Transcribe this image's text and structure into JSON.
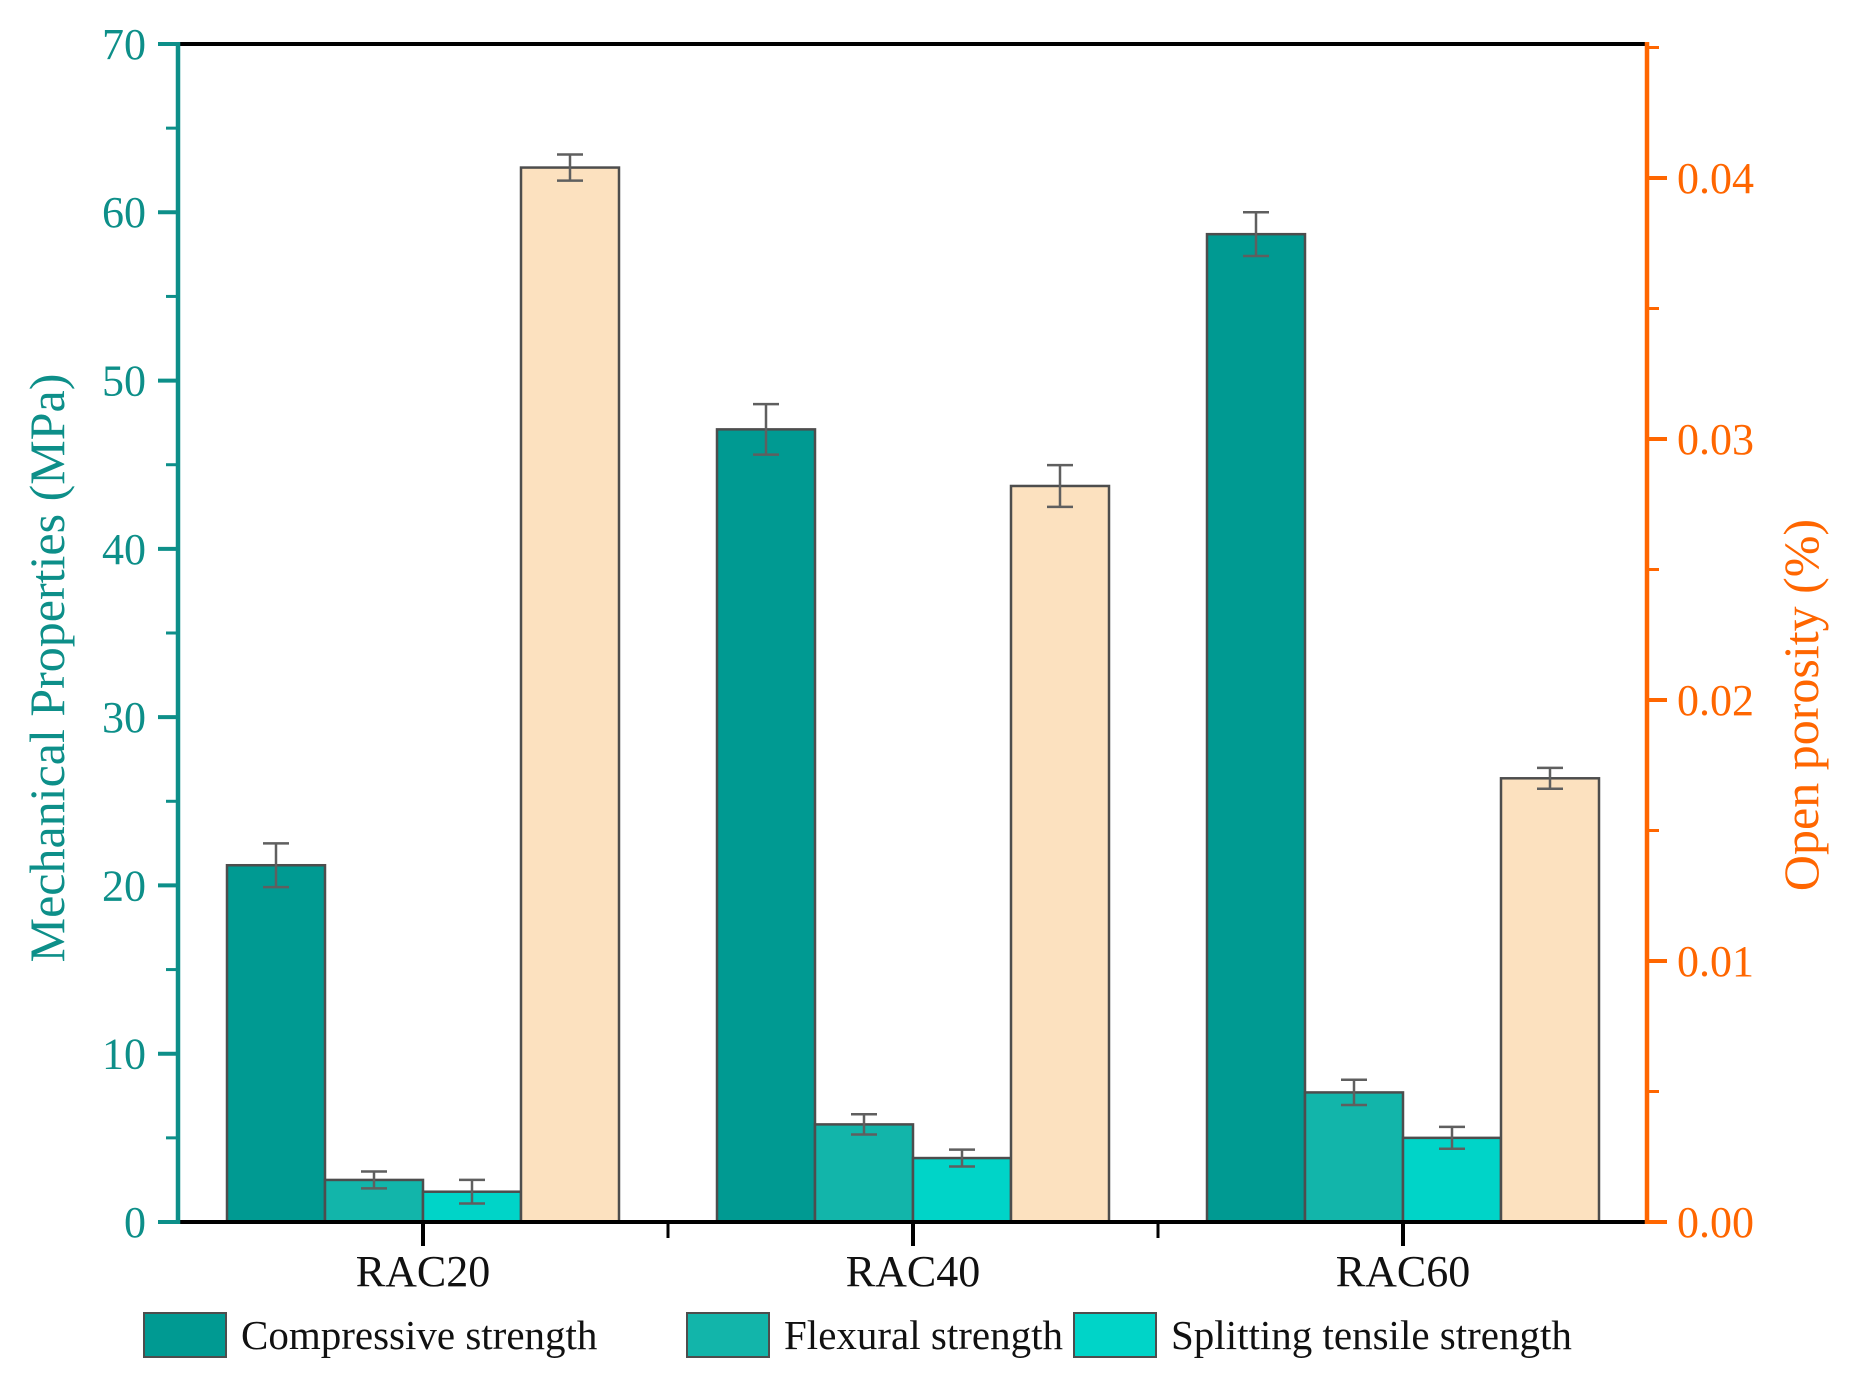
{
  "figure": {
    "background": "#ffffff"
  },
  "chart_data": {
    "type": "bar",
    "categories": [
      "RAC20",
      "RAC40",
      "RAC60"
    ],
    "series": [
      {
        "name": "Compressive strength",
        "axis": "left",
        "color": "#009a92",
        "values": [
          21.2,
          47.1,
          58.7
        ],
        "errors": [
          1.3,
          1.5,
          1.3
        ]
      },
      {
        "name": "Flexural strength",
        "axis": "left",
        "color": "#12b5aa",
        "values": [
          2.5,
          5.8,
          7.7
        ],
        "errors": [
          0.5,
          0.6,
          0.75
        ]
      },
      {
        "name": "Splitting tensile strength",
        "axis": "left",
        "color": "#00d4c8",
        "values": [
          1.8,
          3.8,
          5.0
        ],
        "errors": [
          0.7,
          0.5,
          0.65
        ]
      },
      {
        "name": "Open porosity",
        "axis": "right",
        "color": "#fce1bf",
        "values": [
          0.0404,
          0.0282,
          0.017
        ],
        "errors": [
          0.0005,
          0.0008,
          0.0004
        ]
      }
    ],
    "left_axis": {
      "label": "Mechanical Properties (MPa)",
      "min": 0,
      "max": 70,
      "major_step": 10,
      "minor_step": 5,
      "tick_labels": [
        "0",
        "10",
        "20",
        "30",
        "40",
        "50",
        "60",
        "70"
      ],
      "color": "#0d8f89"
    },
    "right_axis": {
      "label": "Open porosity (%)",
      "min": 0,
      "max": 0.04513,
      "major_step": 0.01,
      "minor_step": 0.005,
      "tick_labels": [
        "0.00",
        "0.01",
        "0.02",
        "0.03",
        "0.04"
      ],
      "color": "#ff6600"
    },
    "x_axis": {
      "labels": [
        "RAC20",
        "RAC40",
        "RAC60"
      ],
      "color": "#000000"
    },
    "legend": {
      "entries": [
        "Compressive strength",
        "Flexural strength",
        "Splitting tensile strength"
      ],
      "position": "bottom"
    },
    "style": {
      "bar_outline_color": "#4d4d4d",
      "error_bar_color": "#5f5f5f",
      "grid": "off"
    }
  }
}
